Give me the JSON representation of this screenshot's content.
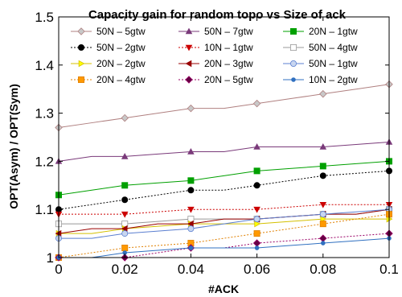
{
  "chart_data": {
    "type": "line",
    "title": "Capacity gain for random topo vs Size of ack",
    "xlabel": "#ACK",
    "ylabel": "OPT(Asym) / OPT(Sym)",
    "xlim": [
      0,
      0.1
    ],
    "ylim": [
      1,
      1.5
    ],
    "x_ticks": [
      "0",
      "0.02",
      "0.04",
      "0.06",
      "0.08",
      "0.1"
    ],
    "y_ticks": [
      "1",
      "1.1",
      "1.2",
      "1.3",
      "1.4",
      "1.5"
    ],
    "x": [
      0,
      0.01,
      0.02,
      0.03,
      0.04,
      0.05,
      0.06,
      0.07,
      0.08,
      0.09,
      0.1
    ],
    "legend_position": "top",
    "series": [
      {
        "name": "50N – 5gtw",
        "color": "#b08080",
        "marker": "diamond",
        "fill": "#c8c8c8",
        "dash": "",
        "values": [
          1.27,
          1.28,
          1.29,
          1.3,
          1.31,
          1.31,
          1.32,
          1.33,
          1.34,
          1.35,
          1.36
        ]
      },
      {
        "name": "50N – 7gtw",
        "color": "#7a3a7a",
        "marker": "triangle-up",
        "fill": "#7a3a7a",
        "dash": "",
        "values": [
          1.2,
          1.21,
          1.21,
          1.215,
          1.22,
          1.22,
          1.23,
          1.23,
          1.23,
          1.235,
          1.24
        ]
      },
      {
        "name": "20N – 1gtw",
        "color": "#00a000",
        "marker": "square",
        "fill": "#00a000",
        "dash": "",
        "values": [
          1.13,
          1.14,
          1.15,
          1.155,
          1.16,
          1.17,
          1.18,
          1.185,
          1.19,
          1.195,
          1.2
        ]
      },
      {
        "name": "50N – 2gtw",
        "color": "#000000",
        "marker": "circle",
        "fill": "#000000",
        "dash": "2,2",
        "values": [
          1.1,
          1.11,
          1.12,
          1.13,
          1.14,
          1.14,
          1.15,
          1.16,
          1.17,
          1.175,
          1.18
        ]
      },
      {
        "name": "10N – 1gtw",
        "color": "#cc0000",
        "marker": "triangle-down",
        "fill": "#cc0000",
        "dash": "2,2",
        "values": [
          1.09,
          1.09,
          1.09,
          1.095,
          1.1,
          1.1,
          1.1,
          1.105,
          1.11,
          1.11,
          1.11
        ]
      },
      {
        "name": "50N – 4gtw",
        "color": "#999999",
        "marker": "square",
        "fill": "#ffffff",
        "dash": "",
        "values": [
          1.07,
          1.07,
          1.07,
          1.075,
          1.08,
          1.08,
          1.08,
          1.085,
          1.09,
          1.09,
          1.1
        ]
      },
      {
        "name": "20N – 2gtw",
        "color": "#d4c000",
        "marker": "triangle-right",
        "fill": "#ffff00",
        "dash": "",
        "values": [
          1.05,
          1.05,
          1.06,
          1.065,
          1.07,
          1.07,
          1.07,
          1.075,
          1.08,
          1.08,
          1.08
        ]
      },
      {
        "name": "20N – 3gtw",
        "color": "#990000",
        "marker": "triangle-left",
        "fill": "#990000",
        "dash": "",
        "values": [
          1.05,
          1.06,
          1.06,
          1.07,
          1.07,
          1.08,
          1.08,
          1.085,
          1.09,
          1.09,
          1.1
        ]
      },
      {
        "name": "50N – 1gtw",
        "color": "#5b7fd0",
        "marker": "circle",
        "fill": "#c8d6f0",
        "dash": "",
        "values": [
          1.04,
          1.04,
          1.05,
          1.055,
          1.06,
          1.07,
          1.08,
          1.085,
          1.09,
          1.095,
          1.1
        ]
      },
      {
        "name": "20N – 4gtw",
        "color": "#e08000",
        "marker": "square",
        "fill": "#ff9900",
        "dash": "2,2",
        "values": [
          1.0,
          1.01,
          1.02,
          1.025,
          1.03,
          1.04,
          1.05,
          1.06,
          1.07,
          1.08,
          1.09
        ]
      },
      {
        "name": "20N – 5gtw",
        "color": "#990066",
        "marker": "diamond",
        "fill": "#660044",
        "dash": "2,2",
        "values": [
          1.0,
          1.0,
          1.0,
          1.01,
          1.02,
          1.02,
          1.03,
          1.035,
          1.04,
          1.045,
          1.05
        ]
      },
      {
        "name": "10N – 2gtw",
        "color": "#3070c0",
        "marker": "dot",
        "fill": "#3070c0",
        "dash": "",
        "values": [
          1.0,
          1.0,
          1.01,
          1.015,
          1.02,
          1.02,
          1.02,
          1.025,
          1.03,
          1.035,
          1.04
        ]
      }
    ]
  }
}
